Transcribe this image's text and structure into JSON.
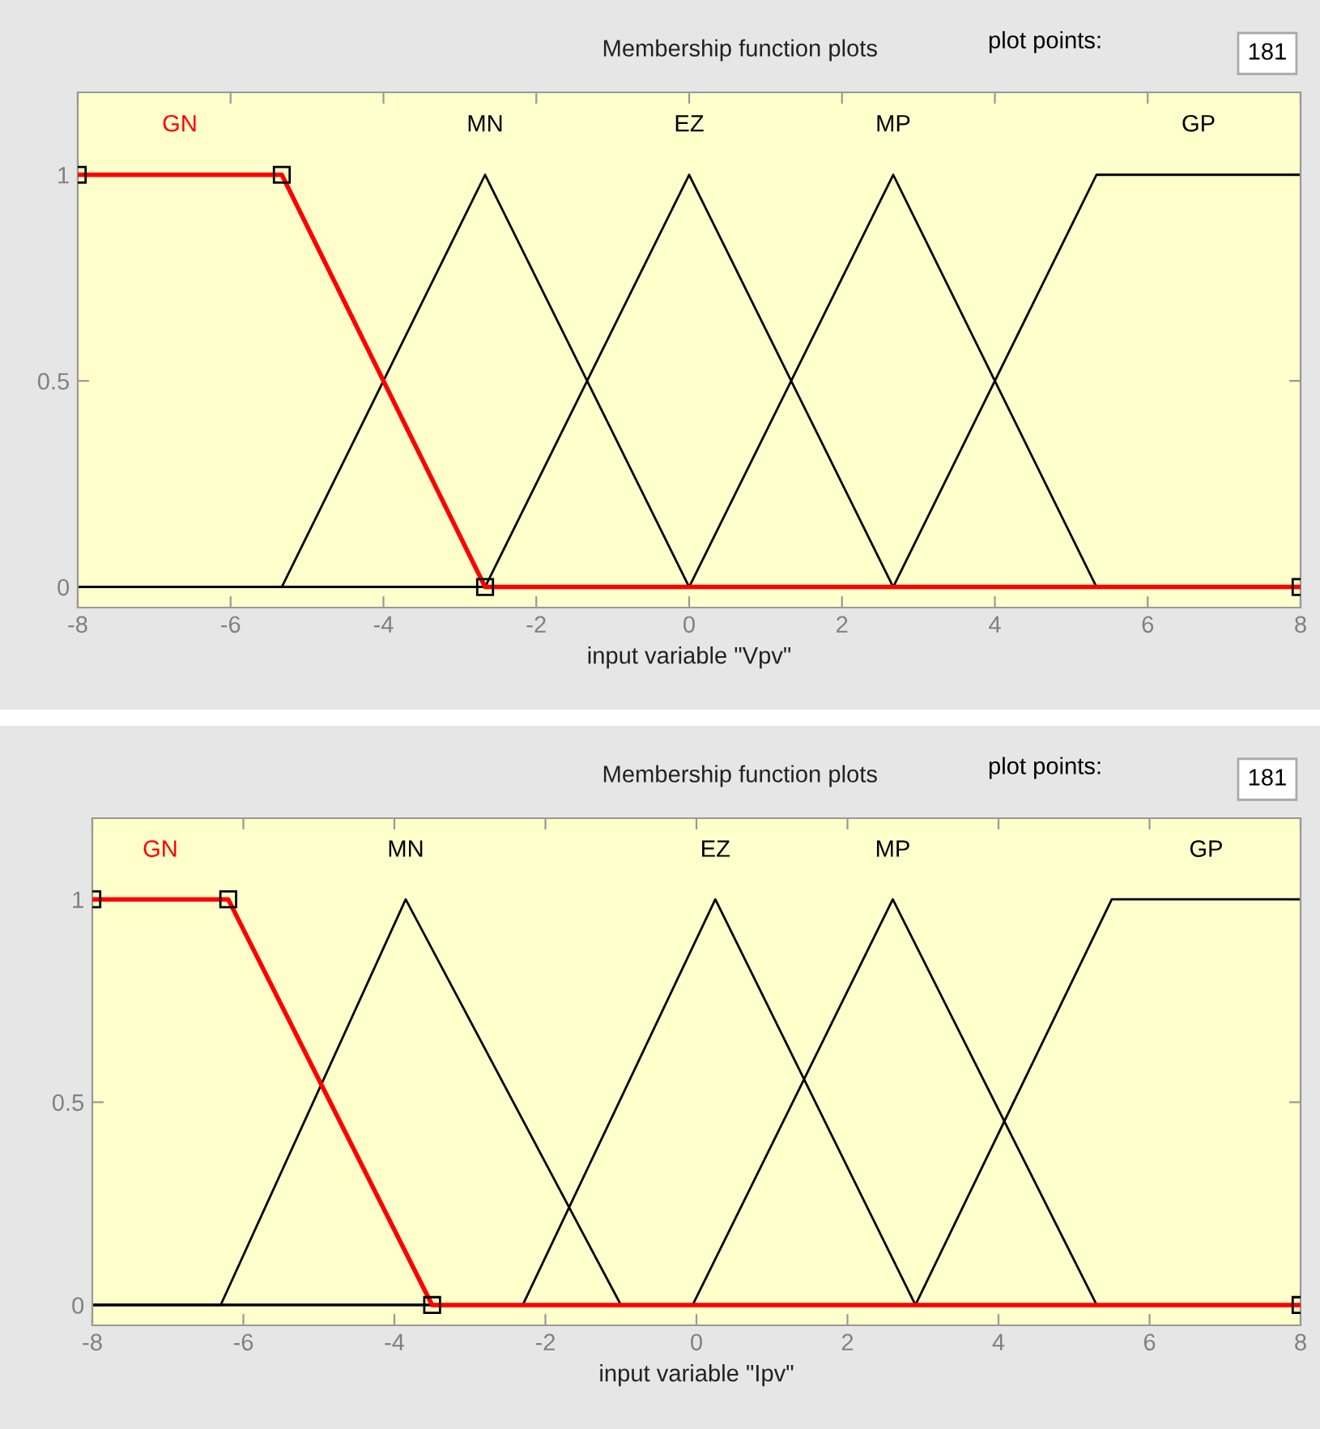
{
  "chart_data": [
    {
      "type": "line",
      "title": "Membership function plots",
      "xlabel": "input variable \"Vpv\"",
      "annotations": [
        "plot points:",
        "181"
      ],
      "xlim": [
        -8,
        8
      ],
      "xticks": [
        -8,
        -6,
        -4,
        -2,
        0,
        2,
        4,
        6,
        8
      ],
      "ylim": [
        -0.05,
        1.2
      ],
      "yticks": [
        0,
        0.5,
        1
      ],
      "grid": false,
      "legend": false,
      "series": [
        {
          "name": "GN",
          "color": "#ff0000",
          "marker": "square",
          "x": [
            -8,
            -5.33,
            -2.67,
            8
          ],
          "values": [
            1,
            1,
            0,
            0
          ]
        },
        {
          "name": "MN",
          "color": "#000000",
          "x": [
            -8,
            -5.33,
            -2.67,
            0,
            8
          ],
          "values": [
            0,
            0,
            1,
            0,
            0
          ]
        },
        {
          "name": "EZ",
          "color": "#000000",
          "x": [
            -8,
            -2.67,
            0,
            2.67,
            8
          ],
          "values": [
            0,
            0,
            1,
            0,
            0
          ]
        },
        {
          "name": "MP",
          "color": "#000000",
          "x": [
            -8,
            0,
            2.67,
            5.33,
            8
          ],
          "values": [
            0,
            0,
            1,
            0,
            0
          ]
        },
        {
          "name": "GP",
          "color": "#000000",
          "x": [
            -8,
            2.67,
            5.33,
            8
          ],
          "values": [
            0,
            0,
            1,
            1
          ]
        }
      ]
    },
    {
      "type": "line",
      "title": "Membership function plots",
      "xlabel": "input variable \"Ipv\"",
      "annotations": [
        "plot points:",
        "181"
      ],
      "xlim": [
        -8,
        8
      ],
      "xticks": [
        -8,
        -6,
        -4,
        -2,
        0,
        2,
        4,
        6,
        8
      ],
      "ylim": [
        -0.05,
        1.2
      ],
      "yticks": [
        0,
        0.5,
        1
      ],
      "grid": false,
      "legend": false,
      "series": [
        {
          "name": "GN",
          "color": "#ff0000",
          "marker": "square",
          "x": [
            -8,
            -6.2,
            -3.5,
            8
          ],
          "values": [
            1,
            1,
            0,
            0
          ]
        },
        {
          "name": "MN",
          "color": "#000000",
          "x": [
            -8,
            -6.3,
            -3.85,
            -1.0,
            8
          ],
          "values": [
            0,
            0,
            1,
            0,
            0
          ]
        },
        {
          "name": "EZ",
          "color": "#000000",
          "x": [
            -8,
            -2.3,
            0.25,
            2.9,
            8
          ],
          "values": [
            0,
            0,
            1,
            0,
            0
          ]
        },
        {
          "name": "MP",
          "color": "#000000",
          "x": [
            -8,
            -0.05,
            2.6,
            5.3,
            8
          ],
          "values": [
            0,
            0,
            1,
            0,
            0
          ]
        },
        {
          "name": "GP",
          "color": "#000000",
          "x": [
            -8,
            2.9,
            5.5,
            8
          ],
          "values": [
            0,
            0,
            1,
            1
          ]
        }
      ]
    }
  ]
}
